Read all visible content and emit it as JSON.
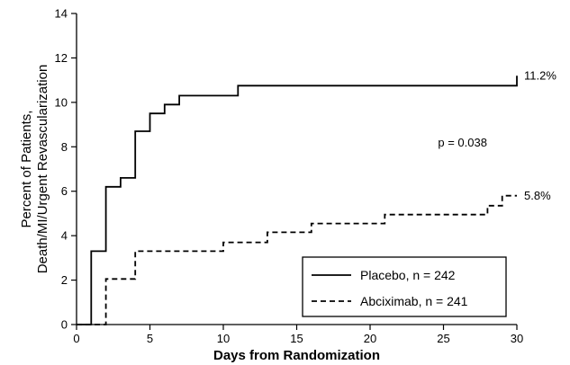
{
  "chart_data": {
    "type": "line",
    "xlabel": "Days from Randomization",
    "ylabel_lines": [
      "Percent of Patients,",
      "Death/MI/Urgent Revascularization"
    ],
    "xlim": [
      0,
      30
    ],
    "ylim": [
      0,
      14
    ],
    "x_ticks": [
      0,
      5,
      10,
      15,
      20,
      25,
      30
    ],
    "y_ticks": [
      0,
      2,
      4,
      6,
      8,
      10,
      12,
      14
    ],
    "grid": false,
    "legend_placement": "bottom-right",
    "series": [
      {
        "name": "Placebo, n = 242",
        "style": "solid",
        "color": "#000000",
        "end_label": "11.2%",
        "points": [
          [
            0,
            0
          ],
          [
            1,
            0
          ],
          [
            1,
            3.3
          ],
          [
            2,
            3.3
          ],
          [
            2,
            6.2
          ],
          [
            3,
            6.2
          ],
          [
            3,
            6.6
          ],
          [
            4,
            6.6
          ],
          [
            4,
            8.7
          ],
          [
            5,
            8.7
          ],
          [
            5,
            9.5
          ],
          [
            6,
            9.5
          ],
          [
            6,
            9.9
          ],
          [
            7,
            9.9
          ],
          [
            7,
            10.3
          ],
          [
            11,
            10.3
          ],
          [
            11,
            10.75
          ],
          [
            30,
            10.75
          ],
          [
            30,
            11.2
          ]
        ]
      },
      {
        "name": "Abciximab, n = 241",
        "style": "dashed",
        "color": "#000000",
        "end_label": "5.8%",
        "points": [
          [
            0,
            0
          ],
          [
            2,
            0
          ],
          [
            2,
            2.05
          ],
          [
            4,
            2.05
          ],
          [
            4,
            3.3
          ],
          [
            10,
            3.3
          ],
          [
            10,
            3.7
          ],
          [
            13,
            3.7
          ],
          [
            13,
            4.15
          ],
          [
            16,
            4.15
          ],
          [
            16,
            4.55
          ],
          [
            21,
            4.55
          ],
          [
            21,
            4.95
          ],
          [
            28,
            4.95
          ],
          [
            28,
            5.35
          ],
          [
            29,
            5.35
          ],
          [
            29,
            5.8
          ],
          [
            30,
            5.8
          ]
        ]
      }
    ],
    "annotations": [
      {
        "text": "p = 0.038",
        "x": 26.3,
        "y": 8.2
      }
    ]
  }
}
